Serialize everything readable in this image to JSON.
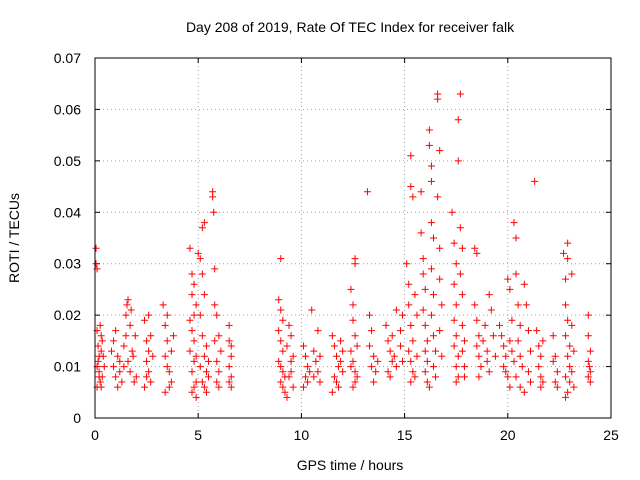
{
  "chart_data": {
    "type": "scatter",
    "title": "Day 208 of 2019, Rate Of TEC Index for receiver falk",
    "xlabel": "GPS time / hours",
    "ylabel": "ROTI / TECUs",
    "xlim": [
      0,
      25
    ],
    "ylim": [
      0,
      0.07
    ],
    "xticks": [
      0,
      5,
      10,
      15,
      20,
      25
    ],
    "yticks": [
      0,
      0.01,
      0.02,
      0.03,
      0.04,
      0.05,
      0.06,
      0.07
    ],
    "xtick_labels": [
      "0",
      "5",
      "10",
      "15",
      "20",
      "25"
    ],
    "ytick_labels": [
      "0",
      "0.01",
      "0.02",
      "0.03",
      "0.04",
      "0.05",
      "0.06",
      "0.07"
    ],
    "grid": true,
    "marker": "+",
    "color": "#ff0000",
    "points": [
      [
        0.05,
        0.033
      ],
      [
        0.05,
        0.03
      ],
      [
        0.1,
        0.029
      ],
      [
        0.1,
        0.017
      ],
      [
        0.15,
        0.014
      ],
      [
        0.2,
        0.012
      ],
      [
        0.1,
        0.01
      ],
      [
        0.2,
        0.008
      ],
      [
        0.25,
        0.007
      ],
      [
        0.3,
        0.006
      ],
      [
        0.15,
        0.011
      ],
      [
        0.3,
        0.013
      ],
      [
        0.35,
        0.015
      ],
      [
        0.25,
        0.018
      ],
      [
        0.2,
        0.009
      ],
      [
        0.4,
        0.012
      ],
      [
        0.35,
        0.008
      ],
      [
        0.45,
        0.01
      ],
      [
        0.1,
        0.006
      ],
      [
        0.3,
        0.016
      ],
      [
        0.8,
        0.013
      ],
      [
        0.9,
        0.01
      ],
      [
        1.0,
        0.008
      ],
      [
        1.1,
        0.006
      ],
      [
        1.2,
        0.011
      ],
      [
        0.9,
        0.015
      ],
      [
        1.0,
        0.017
      ],
      [
        1.1,
        0.012
      ],
      [
        1.2,
        0.009
      ],
      [
        1.3,
        0.007
      ],
      [
        1.4,
        0.014
      ],
      [
        1.5,
        0.02
      ],
      [
        1.6,
        0.023
      ],
      [
        1.7,
        0.018
      ],
      [
        1.5,
        0.016
      ],
      [
        1.6,
        0.011
      ],
      [
        1.7,
        0.009
      ],
      [
        1.8,
        0.013
      ],
      [
        1.9,
        0.007
      ],
      [
        1.4,
        0.01
      ],
      [
        1.55,
        0.022
      ],
      [
        1.75,
        0.021
      ],
      [
        1.85,
        0.012
      ],
      [
        2.0,
        0.008
      ],
      [
        1.95,
        0.016
      ],
      [
        2.4,
        0.019
      ],
      [
        2.5,
        0.015
      ],
      [
        2.6,
        0.013
      ],
      [
        2.5,
        0.011
      ],
      [
        2.6,
        0.009
      ],
      [
        2.7,
        0.007
      ],
      [
        2.4,
        0.006
      ],
      [
        2.8,
        0.012
      ],
      [
        2.7,
        0.016
      ],
      [
        2.6,
        0.02
      ],
      [
        2.5,
        0.008
      ],
      [
        3.3,
        0.022
      ],
      [
        3.4,
        0.018
      ],
      [
        3.5,
        0.015
      ],
      [
        3.4,
        0.012
      ],
      [
        3.5,
        0.01
      ],
      [
        3.6,
        0.009
      ],
      [
        3.7,
        0.007
      ],
      [
        3.6,
        0.006
      ],
      [
        3.4,
        0.005
      ],
      [
        3.7,
        0.013
      ],
      [
        3.8,
        0.016
      ],
      [
        3.5,
        0.02
      ],
      [
        4.6,
        0.033
      ],
      [
        4.7,
        0.028
      ],
      [
        4.7,
        0.024
      ],
      [
        4.8,
        0.02
      ],
      [
        4.7,
        0.017
      ],
      [
        4.8,
        0.015
      ],
      [
        4.6,
        0.013
      ],
      [
        4.8,
        0.011
      ],
      [
        4.7,
        0.009
      ],
      [
        4.9,
        0.007
      ],
      [
        4.8,
        0.006
      ],
      [
        4.7,
        0.005
      ],
      [
        4.9,
        0.004
      ],
      [
        4.8,
        0.026
      ],
      [
        4.9,
        0.022
      ],
      [
        4.6,
        0.019
      ],
      [
        4.9,
        0.012
      ],
      [
        5.0,
        0.032
      ],
      [
        5.1,
        0.031
      ],
      [
        5.2,
        0.037
      ],
      [
        5.3,
        0.038
      ],
      [
        5.2,
        0.028
      ],
      [
        5.3,
        0.024
      ],
      [
        5.1,
        0.02
      ],
      [
        5.2,
        0.016
      ],
      [
        5.3,
        0.012
      ],
      [
        5.4,
        0.009
      ],
      [
        5.2,
        0.007
      ],
      [
        5.3,
        0.006
      ],
      [
        5.4,
        0.005
      ],
      [
        5.1,
        0.01
      ],
      [
        5.4,
        0.014
      ],
      [
        5.5,
        0.011
      ],
      [
        5.5,
        0.008
      ],
      [
        5.7,
        0.044
      ],
      [
        5.7,
        0.043
      ],
      [
        5.75,
        0.04
      ],
      [
        5.8,
        0.029
      ],
      [
        5.8,
        0.022
      ],
      [
        5.9,
        0.02
      ],
      [
        5.8,
        0.015
      ],
      [
        5.9,
        0.011
      ],
      [
        6.0,
        0.009
      ],
      [
        5.9,
        0.007
      ],
      [
        6.0,
        0.006
      ],
      [
        6.1,
        0.013
      ],
      [
        6.0,
        0.016
      ],
      [
        6.5,
        0.018
      ],
      [
        6.6,
        0.014
      ],
      [
        6.6,
        0.012
      ],
      [
        6.5,
        0.01
      ],
      [
        6.6,
        0.008
      ],
      [
        6.5,
        0.007
      ],
      [
        6.6,
        0.006
      ],
      [
        6.5,
        0.015
      ],
      [
        9.0,
        0.031
      ],
      [
        8.9,
        0.023
      ],
      [
        9.0,
        0.021
      ],
      [
        9.1,
        0.019
      ],
      [
        8.9,
        0.017
      ],
      [
        9.0,
        0.015
      ],
      [
        9.1,
        0.013
      ],
      [
        8.9,
        0.011
      ],
      [
        9.0,
        0.01
      ],
      [
        9.1,
        0.009
      ],
      [
        9.2,
        0.008
      ],
      [
        9.0,
        0.007
      ],
      [
        9.1,
        0.006
      ],
      [
        9.2,
        0.005
      ],
      [
        9.3,
        0.004
      ],
      [
        9.3,
        0.014
      ],
      [
        9.4,
        0.018
      ],
      [
        9.5,
        0.011
      ],
      [
        9.4,
        0.008
      ],
      [
        9.6,
        0.012
      ],
      [
        9.5,
        0.016
      ],
      [
        9.6,
        0.006
      ],
      [
        9.5,
        0.009
      ],
      [
        10.1,
        0.014
      ],
      [
        10.2,
        0.012
      ],
      [
        10.3,
        0.01
      ],
      [
        10.2,
        0.008
      ],
      [
        10.3,
        0.007
      ],
      [
        10.1,
        0.006
      ],
      [
        10.4,
        0.009
      ],
      [
        10.5,
        0.021
      ],
      [
        10.6,
        0.013
      ],
      [
        10.7,
        0.011
      ],
      [
        10.8,
        0.009
      ],
      [
        10.6,
        0.008
      ],
      [
        10.9,
        0.012
      ],
      [
        10.8,
        0.017
      ],
      [
        10.9,
        0.007
      ],
      [
        11.5,
        0.016
      ],
      [
        11.6,
        0.014
      ],
      [
        11.7,
        0.012
      ],
      [
        11.8,
        0.01
      ],
      [
        11.6,
        0.008
      ],
      [
        11.7,
        0.007
      ],
      [
        11.8,
        0.006
      ],
      [
        11.5,
        0.005
      ],
      [
        11.9,
        0.011
      ],
      [
        12.0,
        0.013
      ],
      [
        12.0,
        0.009
      ],
      [
        11.9,
        0.015
      ],
      [
        12.4,
        0.025
      ],
      [
        12.5,
        0.022
      ],
      [
        12.6,
        0.03
      ],
      [
        12.6,
        0.031
      ],
      [
        12.5,
        0.019
      ],
      [
        12.6,
        0.016
      ],
      [
        12.4,
        0.013
      ],
      [
        12.5,
        0.011
      ],
      [
        12.6,
        0.009
      ],
      [
        12.7,
        0.008
      ],
      [
        12.6,
        0.007
      ],
      [
        12.5,
        0.006
      ],
      [
        12.7,
        0.014
      ],
      [
        12.4,
        0.01
      ],
      [
        13.2,
        0.044
      ],
      [
        13.3,
        0.02
      ],
      [
        13.4,
        0.017
      ],
      [
        13.3,
        0.014
      ],
      [
        13.5,
        0.012
      ],
      [
        13.4,
        0.01
      ],
      [
        13.6,
        0.009
      ],
      [
        13.5,
        0.007
      ],
      [
        13.7,
        0.011
      ],
      [
        14.1,
        0.018
      ],
      [
        14.2,
        0.015
      ],
      [
        14.3,
        0.013
      ],
      [
        14.4,
        0.011
      ],
      [
        14.2,
        0.009
      ],
      [
        14.3,
        0.008
      ],
      [
        14.5,
        0.012
      ],
      [
        14.4,
        0.016
      ],
      [
        14.6,
        0.01
      ],
      [
        14.6,
        0.021
      ],
      [
        14.8,
        0.014
      ],
      [
        14.9,
        0.02
      ],
      [
        14.8,
        0.017
      ],
      [
        14.9,
        0.011
      ],
      [
        15.1,
        0.03
      ],
      [
        15.2,
        0.026
      ],
      [
        15.3,
        0.051
      ],
      [
        15.3,
        0.045
      ],
      [
        15.4,
        0.043
      ],
      [
        15.2,
        0.022
      ],
      [
        15.3,
        0.018
      ],
      [
        15.4,
        0.015
      ],
      [
        15.2,
        0.013
      ],
      [
        15.3,
        0.011
      ],
      [
        15.4,
        0.009
      ],
      [
        15.5,
        0.008
      ],
      [
        15.3,
        0.007
      ],
      [
        15.5,
        0.024
      ],
      [
        15.6,
        0.02
      ],
      [
        15.6,
        0.012
      ],
      [
        15.8,
        0.044
      ],
      [
        15.8,
        0.036
      ],
      [
        15.9,
        0.031
      ],
      [
        15.9,
        0.028
      ],
      [
        16.0,
        0.025
      ],
      [
        15.9,
        0.021
      ],
      [
        16.0,
        0.018
      ],
      [
        16.1,
        0.015
      ],
      [
        16.0,
        0.013
      ],
      [
        16.1,
        0.011
      ],
      [
        16.0,
        0.009
      ],
      [
        16.1,
        0.007
      ],
      [
        16.2,
        0.006
      ],
      [
        16.2,
        0.056
      ],
      [
        16.2,
        0.053
      ],
      [
        16.3,
        0.049
      ],
      [
        16.3,
        0.046
      ],
      [
        16.3,
        0.038
      ],
      [
        16.4,
        0.035
      ],
      [
        16.3,
        0.029
      ],
      [
        16.4,
        0.024
      ],
      [
        16.3,
        0.02
      ],
      [
        16.4,
        0.016
      ],
      [
        16.5,
        0.013
      ],
      [
        16.4,
        0.01
      ],
      [
        16.5,
        0.008
      ],
      [
        16.6,
        0.063
      ],
      [
        16.6,
        0.062
      ],
      [
        16.7,
        0.052
      ],
      [
        16.6,
        0.043
      ],
      [
        16.7,
        0.033
      ],
      [
        16.7,
        0.027
      ],
      [
        16.8,
        0.022
      ],
      [
        16.7,
        0.017
      ],
      [
        16.8,
        0.012
      ],
      [
        17.3,
        0.04
      ],
      [
        17.4,
        0.034
      ],
      [
        17.5,
        0.03
      ],
      [
        17.4,
        0.026
      ],
      [
        17.5,
        0.022
      ],
      [
        17.4,
        0.019
      ],
      [
        17.5,
        0.016
      ],
      [
        17.4,
        0.014
      ],
      [
        17.6,
        0.012
      ],
      [
        17.5,
        0.01
      ],
      [
        17.6,
        0.008
      ],
      [
        17.5,
        0.007
      ],
      [
        17.7,
        0.063
      ],
      [
        17.6,
        0.058
      ],
      [
        17.6,
        0.05
      ],
      [
        17.7,
        0.037
      ],
      [
        17.8,
        0.033
      ],
      [
        17.7,
        0.028
      ],
      [
        17.8,
        0.024
      ],
      [
        17.8,
        0.018
      ],
      [
        17.9,
        0.015
      ],
      [
        17.8,
        0.013
      ],
      [
        17.9,
        0.01
      ],
      [
        17.9,
        0.008
      ],
      [
        18.4,
        0.033
      ],
      [
        18.5,
        0.032
      ],
      [
        18.4,
        0.022
      ],
      [
        18.5,
        0.019
      ],
      [
        18.6,
        0.016
      ],
      [
        18.5,
        0.014
      ],
      [
        18.6,
        0.012
      ],
      [
        18.7,
        0.01
      ],
      [
        18.6,
        0.008
      ],
      [
        18.8,
        0.015
      ],
      [
        18.9,
        0.018
      ],
      [
        19.0,
        0.013
      ],
      [
        19.0,
        0.011
      ],
      [
        19.1,
        0.009
      ],
      [
        19.2,
        0.021
      ],
      [
        19.1,
        0.024
      ],
      [
        19.3,
        0.016
      ],
      [
        19.4,
        0.012
      ],
      [
        19.6,
        0.018
      ],
      [
        19.7,
        0.016
      ],
      [
        19.8,
        0.014
      ],
      [
        19.9,
        0.012
      ],
      [
        19.8,
        0.01
      ],
      [
        19.9,
        0.009
      ],
      [
        20.0,
        0.008
      ],
      [
        20.1,
        0.006
      ],
      [
        20.0,
        0.027
      ],
      [
        20.1,
        0.025
      ],
      [
        20.2,
        0.019
      ],
      [
        20.1,
        0.015
      ],
      [
        20.2,
        0.013
      ],
      [
        20.3,
        0.011
      ],
      [
        20.4,
        0.008
      ],
      [
        20.3,
        0.038
      ],
      [
        20.4,
        0.035
      ],
      [
        20.4,
        0.028
      ],
      [
        20.5,
        0.022
      ],
      [
        20.6,
        0.018
      ],
      [
        20.5,
        0.015
      ],
      [
        20.6,
        0.012
      ],
      [
        20.7,
        0.01
      ],
      [
        20.6,
        0.006
      ],
      [
        20.8,
        0.005
      ],
      [
        20.8,
        0.026
      ],
      [
        20.9,
        0.022
      ],
      [
        21.0,
        0.017
      ],
      [
        21.1,
        0.013
      ],
      [
        21.0,
        0.009
      ],
      [
        21.1,
        0.007
      ],
      [
        21.3,
        0.046
      ],
      [
        21.4,
        0.017
      ],
      [
        21.5,
        0.014
      ],
      [
        21.6,
        0.012
      ],
      [
        21.5,
        0.01
      ],
      [
        21.6,
        0.008
      ],
      [
        21.7,
        0.007
      ],
      [
        21.6,
        0.006
      ],
      [
        21.7,
        0.015
      ],
      [
        22.2,
        0.016
      ],
      [
        22.3,
        0.012
      ],
      [
        22.4,
        0.009
      ],
      [
        22.3,
        0.007
      ],
      [
        22.4,
        0.006
      ],
      [
        22.2,
        0.011
      ],
      [
        22.7,
        0.032
      ],
      [
        22.8,
        0.027
      ],
      [
        22.9,
        0.034
      ],
      [
        22.9,
        0.031
      ],
      [
        22.8,
        0.022
      ],
      [
        22.9,
        0.019
      ],
      [
        22.8,
        0.016
      ],
      [
        23.0,
        0.014
      ],
      [
        22.9,
        0.012
      ],
      [
        23.0,
        0.01
      ],
      [
        22.8,
        0.008
      ],
      [
        23.0,
        0.007
      ],
      [
        22.9,
        0.005
      ],
      [
        22.8,
        0.004
      ],
      [
        23.1,
        0.028
      ],
      [
        23.1,
        0.018
      ],
      [
        23.2,
        0.013
      ],
      [
        23.1,
        0.009
      ],
      [
        23.2,
        0.006
      ],
      [
        23.9,
        0.02
      ],
      [
        23.9,
        0.016
      ],
      [
        24.0,
        0.013
      ],
      [
        23.9,
        0.011
      ],
      [
        24.0,
        0.009
      ],
      [
        23.9,
        0.008
      ],
      [
        24.0,
        0.007
      ],
      [
        23.95,
        0.01
      ]
    ]
  }
}
